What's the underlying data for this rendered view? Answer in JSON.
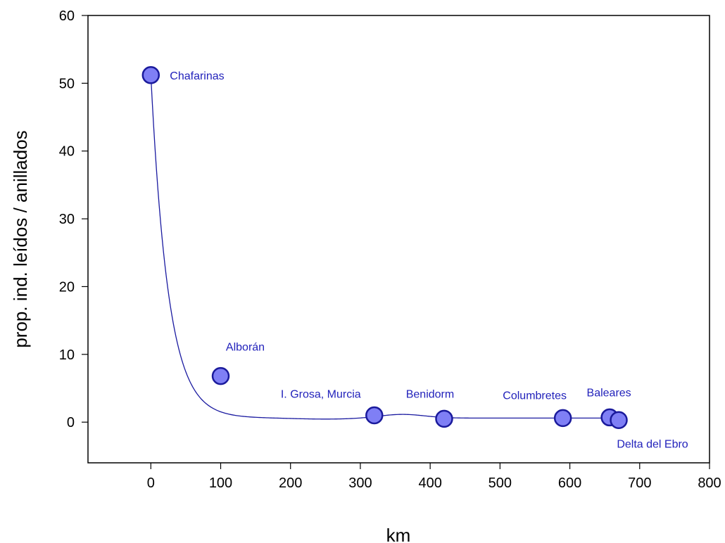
{
  "chart_data": {
    "type": "scatter",
    "xlabel": "km",
    "ylabel": "prop. ind. leídos / anillados",
    "xlim": [
      -90,
      800
    ],
    "ylim": [
      -6,
      60
    ],
    "xticks": [
      0,
      100,
      200,
      300,
      400,
      500,
      600,
      700,
      800
    ],
    "yticks": [
      0,
      10,
      20,
      30,
      40,
      50,
      60
    ],
    "grid": false,
    "smooth_line": true,
    "points": [
      {
        "label": "Chafarinas",
        "x": 0,
        "y": 51.2
      },
      {
        "label": "Alborán",
        "x": 100,
        "y": 6.8
      },
      {
        "label": "I. Grosa, Murcia",
        "x": 320,
        "y": 1.0
      },
      {
        "label": "Benidorm",
        "x": 420,
        "y": 0.5
      },
      {
        "label": "Columbretes",
        "x": 590,
        "y": 0.6
      },
      {
        "label": "Baleares",
        "x": 657,
        "y": 0.7
      },
      {
        "label": "Delta del Ebro",
        "x": 670,
        "y": 0.3
      }
    ],
    "colors": {
      "marker_fill": "#7f7ff5",
      "marker_edge": "#1a1a9c",
      "line": "#1a1aa0",
      "label_text": "#2222bb"
    }
  }
}
